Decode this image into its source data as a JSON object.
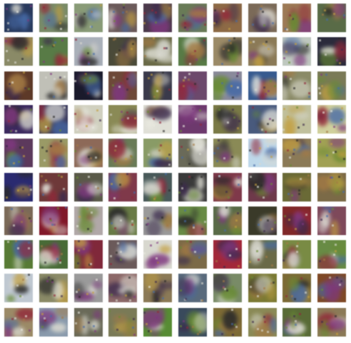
{
  "grid": {
    "rows": 10,
    "cols": 10,
    "tiles": [
      [
        "#2a3a5a",
        "#7a8a6a",
        "#8a9a7a",
        "#6a5a5a",
        "#4a3a4a",
        "#6a7a5a",
        "#8a6a4a",
        "#7a6a5a",
        "#9a7a5a",
        "#5a6a4a"
      ],
      [
        "#8a8a6a",
        "#5a7a4a",
        "#aab0b8",
        "#4a4a3a",
        "#6a6a4a",
        "#5a7a4a",
        "#9a8a6a",
        "#8a7a5a",
        "#c0c8c0",
        "#2a2a3a"
      ],
      [
        "#5a3a2a",
        "#c0c0b8",
        "#1a1a2a",
        "#6a4a3a",
        "#3a3a4a",
        "#6a4a6a",
        "#8a8a9a",
        "#3a5a8a",
        "#8a8a6a",
        "#7a7a5a"
      ],
      [
        "#3a2a5a",
        "#3a3a5a",
        "#d0d0c0",
        "#8a8a5a",
        "#e0e0d8",
        "#6a3a6a",
        "#7a7a4a",
        "#4a5a7a",
        "#c0c0a0",
        "#d0d0a0"
      ],
      [
        "#5a3a5a",
        "#9a9a6a",
        "#8a6a5a",
        "#6a7a5a",
        "#8a9a6a",
        "#6a6a5a",
        "#8a8a5a",
        "#c0d8e8",
        "#8a7a5a",
        "#a0a05a"
      ],
      [
        "#2a2a6a",
        "#6a3a3a",
        "#5a5a4a",
        "#7a3a4a",
        "#4a5a5a",
        "#3a3a3a",
        "#7a3a4a",
        "#6a3a4a",
        "#6a6a3a",
        "#7a6a4a"
      ],
      [
        "#7a6a5a",
        "#7a1a2a",
        "#b0a8a8",
        "#6a7a4a",
        "#9a9a9a",
        "#6a8a4a",
        "#5a6a4a",
        "#3a3a2a",
        "#7a2a2a",
        "#7a4a5a"
      ],
      [
        "#5a7a3a",
        "#4a6a3a",
        "#7a2a3a",
        "#6a5a5a",
        "#d8d8d0",
        "#7a6a4a",
        "#9a2a3a",
        "#6a6a4a",
        "#7a8a4a",
        "#6a8a4a"
      ],
      [
        "#c0c8d0",
        "#8a8a6a",
        "#9a9a9a",
        "#8a6a6a",
        "#8a7a5a",
        "#5a6a7a",
        "#7a8a6a",
        "#7a7a3a",
        "#7a6a3a",
        "#7a4a2a"
      ],
      [
        "#9a8a6a",
        "#8a9aaa",
        "#6a6a5a",
        "#7a7a5a",
        "#5a8a3a",
        "#3a4a5a",
        "#7a6a3a",
        "#8a8a5a",
        "#5a6a3a",
        "#8a7a5a"
      ]
    ]
  }
}
